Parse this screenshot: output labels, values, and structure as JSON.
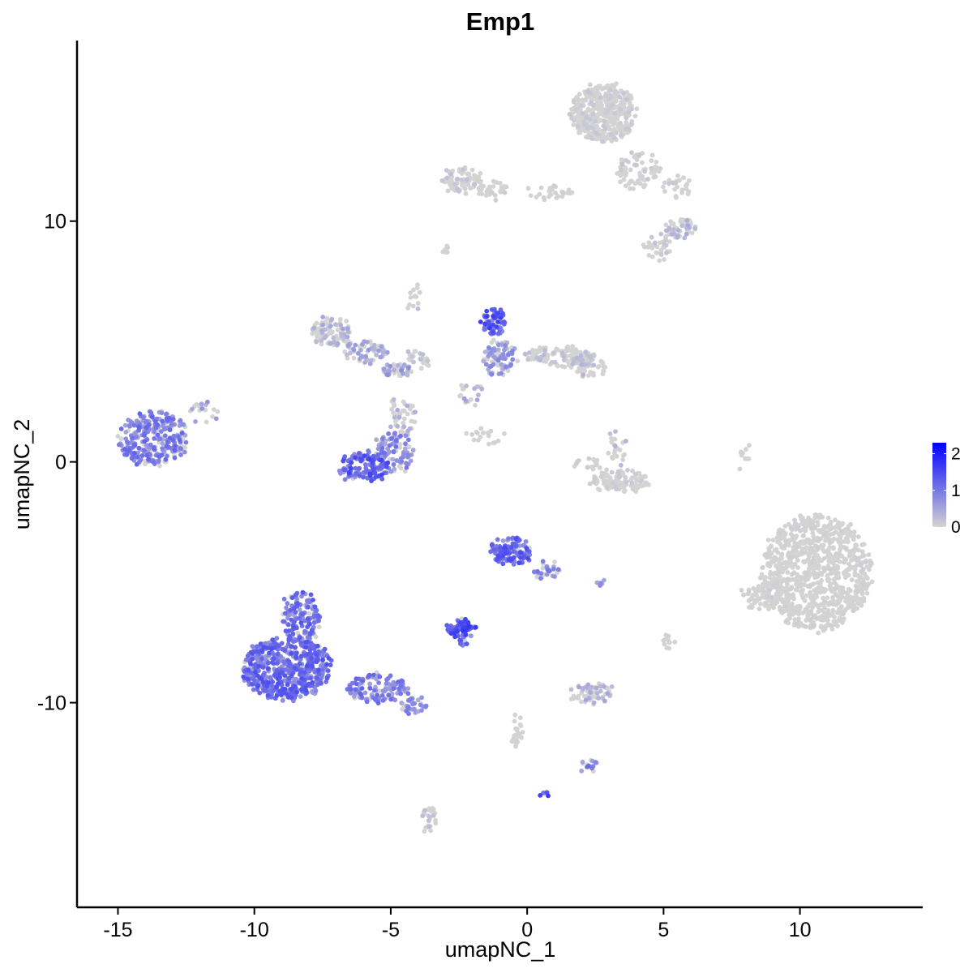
{
  "chart_data": {
    "type": "scatter",
    "title": "Emp1",
    "xlabel": "umapNC_1",
    "ylabel": "umapNC_2",
    "xlim": [
      -16.5,
      14.5
    ],
    "ylim": [
      -18.5,
      17.5
    ],
    "x_ticks": [
      -15,
      -10,
      -5,
      0,
      5,
      10
    ],
    "x_tick_labels": [
      "-15",
      "-10",
      "-5",
      "0",
      "5",
      "10"
    ],
    "y_ticks": [
      -10,
      0,
      10
    ],
    "y_tick_labels": [
      "-10",
      "0",
      "10"
    ],
    "grid": false,
    "legend": {
      "placement": "right",
      "type": "colorbar",
      "ticks": [
        0,
        1,
        2
      ],
      "tick_labels": [
        "0",
        "1",
        "2"
      ],
      "range": [
        0,
        2.3
      ],
      "low_color": "#d3d3d3",
      "high_color": "#0000ff"
    },
    "point_color_low": "#d3d3d3",
    "point_color_high": "#0000ff",
    "clusters": [
      {
        "cx": -13.7,
        "cy": 1.0,
        "rx": 1.3,
        "ry": 1.1,
        "n": 280,
        "expr": 0.85
      },
      {
        "cx": -11.9,
        "cy": 2.0,
        "rx": 0.5,
        "ry": 0.6,
        "n": 20,
        "expr": 0.5
      },
      {
        "cx": -8.8,
        "cy": -8.6,
        "rx": 1.6,
        "ry": 1.3,
        "n": 520,
        "expr": 1.0
      },
      {
        "cx": -8.3,
        "cy": -6.5,
        "rx": 0.7,
        "ry": 1.1,
        "n": 140,
        "expr": 0.95
      },
      {
        "cx": -5.5,
        "cy": -9.4,
        "rx": 1.1,
        "ry": 0.6,
        "n": 120,
        "expr": 0.85
      },
      {
        "cx": -4.2,
        "cy": -10.1,
        "rx": 0.5,
        "ry": 0.3,
        "n": 30,
        "expr": 0.7
      },
      {
        "cx": -6.0,
        "cy": -0.2,
        "rx": 0.9,
        "ry": 0.6,
        "n": 120,
        "expr": 1.1
      },
      {
        "cx": -4.9,
        "cy": 0.4,
        "rx": 0.7,
        "ry": 0.9,
        "n": 100,
        "expr": 0.75
      },
      {
        "cx": -4.6,
        "cy": 1.9,
        "rx": 0.5,
        "ry": 0.8,
        "n": 40,
        "expr": 0.3
      },
      {
        "cx": -7.2,
        "cy": 5.4,
        "rx": 0.7,
        "ry": 0.6,
        "n": 90,
        "expr": 0.35
      },
      {
        "cx": -6.0,
        "cy": 4.6,
        "rx": 0.8,
        "ry": 0.5,
        "n": 60,
        "expr": 0.45
      },
      {
        "cx": -4.8,
        "cy": 3.8,
        "rx": 0.5,
        "ry": 0.3,
        "n": 40,
        "expr": 0.55
      },
      {
        "cx": -4.0,
        "cy": 4.2,
        "rx": 0.5,
        "ry": 0.4,
        "n": 25,
        "expr": 0.2
      },
      {
        "cx": -4.1,
        "cy": 6.8,
        "rx": 0.3,
        "ry": 0.6,
        "n": 14,
        "expr": 0.2
      },
      {
        "cx": -1.2,
        "cy": 5.8,
        "rx": 0.4,
        "ry": 0.6,
        "n": 70,
        "expr": 1.15
      },
      {
        "cx": -1.0,
        "cy": 4.3,
        "rx": 0.6,
        "ry": 0.8,
        "n": 90,
        "expr": 0.6
      },
      {
        "cx": 1.2,
        "cy": 4.4,
        "rx": 1.3,
        "ry": 0.4,
        "n": 120,
        "expr": 0.2
      },
      {
        "cx": 2.3,
        "cy": 4.0,
        "rx": 0.6,
        "ry": 0.5,
        "n": 50,
        "expr": 0.25
      },
      {
        "cx": -2.1,
        "cy": 2.9,
        "rx": 0.4,
        "ry": 0.6,
        "n": 20,
        "expr": 0.4
      },
      {
        "cx": 3.4,
        "cy": -0.8,
        "rx": 1.0,
        "ry": 0.4,
        "n": 110,
        "expr": 0.1
      },
      {
        "cx": 3.3,
        "cy": 0.6,
        "rx": 0.3,
        "ry": 0.7,
        "n": 22,
        "expr": 0.25
      },
      {
        "cx": 2.2,
        "cy": -0.1,
        "rx": 0.5,
        "ry": 0.3,
        "n": 16,
        "expr": 0.1
      },
      {
        "cx": -1.5,
        "cy": 1.1,
        "rx": 0.7,
        "ry": 0.4,
        "n": 18,
        "expr": 0.05
      },
      {
        "cx": 10.6,
        "cy": -4.6,
        "rx": 2.0,
        "ry": 2.4,
        "n": 900,
        "expr": 0.04
      },
      {
        "cx": 8.6,
        "cy": -5.6,
        "rx": 0.7,
        "ry": 0.6,
        "n": 60,
        "expr": 0.05
      },
      {
        "cx": -0.6,
        "cy": -3.7,
        "rx": 0.7,
        "ry": 0.6,
        "n": 110,
        "expr": 1.05
      },
      {
        "cx": 0.7,
        "cy": -4.5,
        "rx": 0.5,
        "ry": 0.4,
        "n": 30,
        "expr": 0.75
      },
      {
        "cx": -2.4,
        "cy": -6.9,
        "rx": 0.5,
        "ry": 0.3,
        "n": 70,
        "expr": 1.2
      },
      {
        "cx": -2.4,
        "cy": -7.5,
        "rx": 0.2,
        "ry": 0.1,
        "n": 8,
        "expr": 1.1
      },
      {
        "cx": 2.3,
        "cy": -9.6,
        "rx": 0.8,
        "ry": 0.4,
        "n": 60,
        "expr": 0.35
      },
      {
        "cx": -0.4,
        "cy": -11.2,
        "rx": 0.2,
        "ry": 0.8,
        "n": 24,
        "expr": 0.2
      },
      {
        "cx": 2.3,
        "cy": -12.6,
        "rx": 0.3,
        "ry": 0.2,
        "n": 15,
        "expr": 0.8
      },
      {
        "cx": -3.6,
        "cy": -14.9,
        "rx": 0.25,
        "ry": 0.7,
        "n": 28,
        "expr": 0.2
      },
      {
        "cx": 0.6,
        "cy": -13.8,
        "rx": 0.1,
        "ry": 0.1,
        "n": 5,
        "expr": 1.2
      },
      {
        "cx": 2.8,
        "cy": 14.5,
        "rx": 1.2,
        "ry": 1.2,
        "n": 420,
        "expr": 0.1
      },
      {
        "cx": 4.0,
        "cy": 12.1,
        "rx": 0.8,
        "ry": 0.8,
        "n": 70,
        "expr": 0.15
      },
      {
        "cx": 5.5,
        "cy": 11.5,
        "rx": 0.5,
        "ry": 0.5,
        "n": 25,
        "expr": 0.1
      },
      {
        "cx": 5.6,
        "cy": 9.7,
        "rx": 0.6,
        "ry": 0.4,
        "n": 60,
        "expr": 0.35
      },
      {
        "cx": 4.8,
        "cy": 9.0,
        "rx": 0.5,
        "ry": 0.5,
        "n": 35,
        "expr": 0.15
      },
      {
        "cx": -2.4,
        "cy": 11.7,
        "rx": 0.7,
        "ry": 0.5,
        "n": 80,
        "expr": 0.15
      },
      {
        "cx": -1.2,
        "cy": 11.3,
        "rx": 0.6,
        "ry": 0.3,
        "n": 30,
        "expr": 0.05
      },
      {
        "cx": 0.8,
        "cy": 11.2,
        "rx": 0.9,
        "ry": 0.3,
        "n": 25,
        "expr": 0.05
      },
      {
        "cx": -3.0,
        "cy": 8.8,
        "rx": 0.15,
        "ry": 0.1,
        "n": 6,
        "expr": 0.0
      },
      {
        "cx": 8.0,
        "cy": 0.3,
        "rx": 0.2,
        "ry": 0.6,
        "n": 10,
        "expr": 0.0
      },
      {
        "cx": 5.1,
        "cy": -7.4,
        "rx": 0.3,
        "ry": 0.3,
        "n": 12,
        "expr": 0.05
      },
      {
        "cx": 2.7,
        "cy": -5.0,
        "rx": 0.2,
        "ry": 0.1,
        "n": 5,
        "expr": 0.6
      }
    ]
  }
}
